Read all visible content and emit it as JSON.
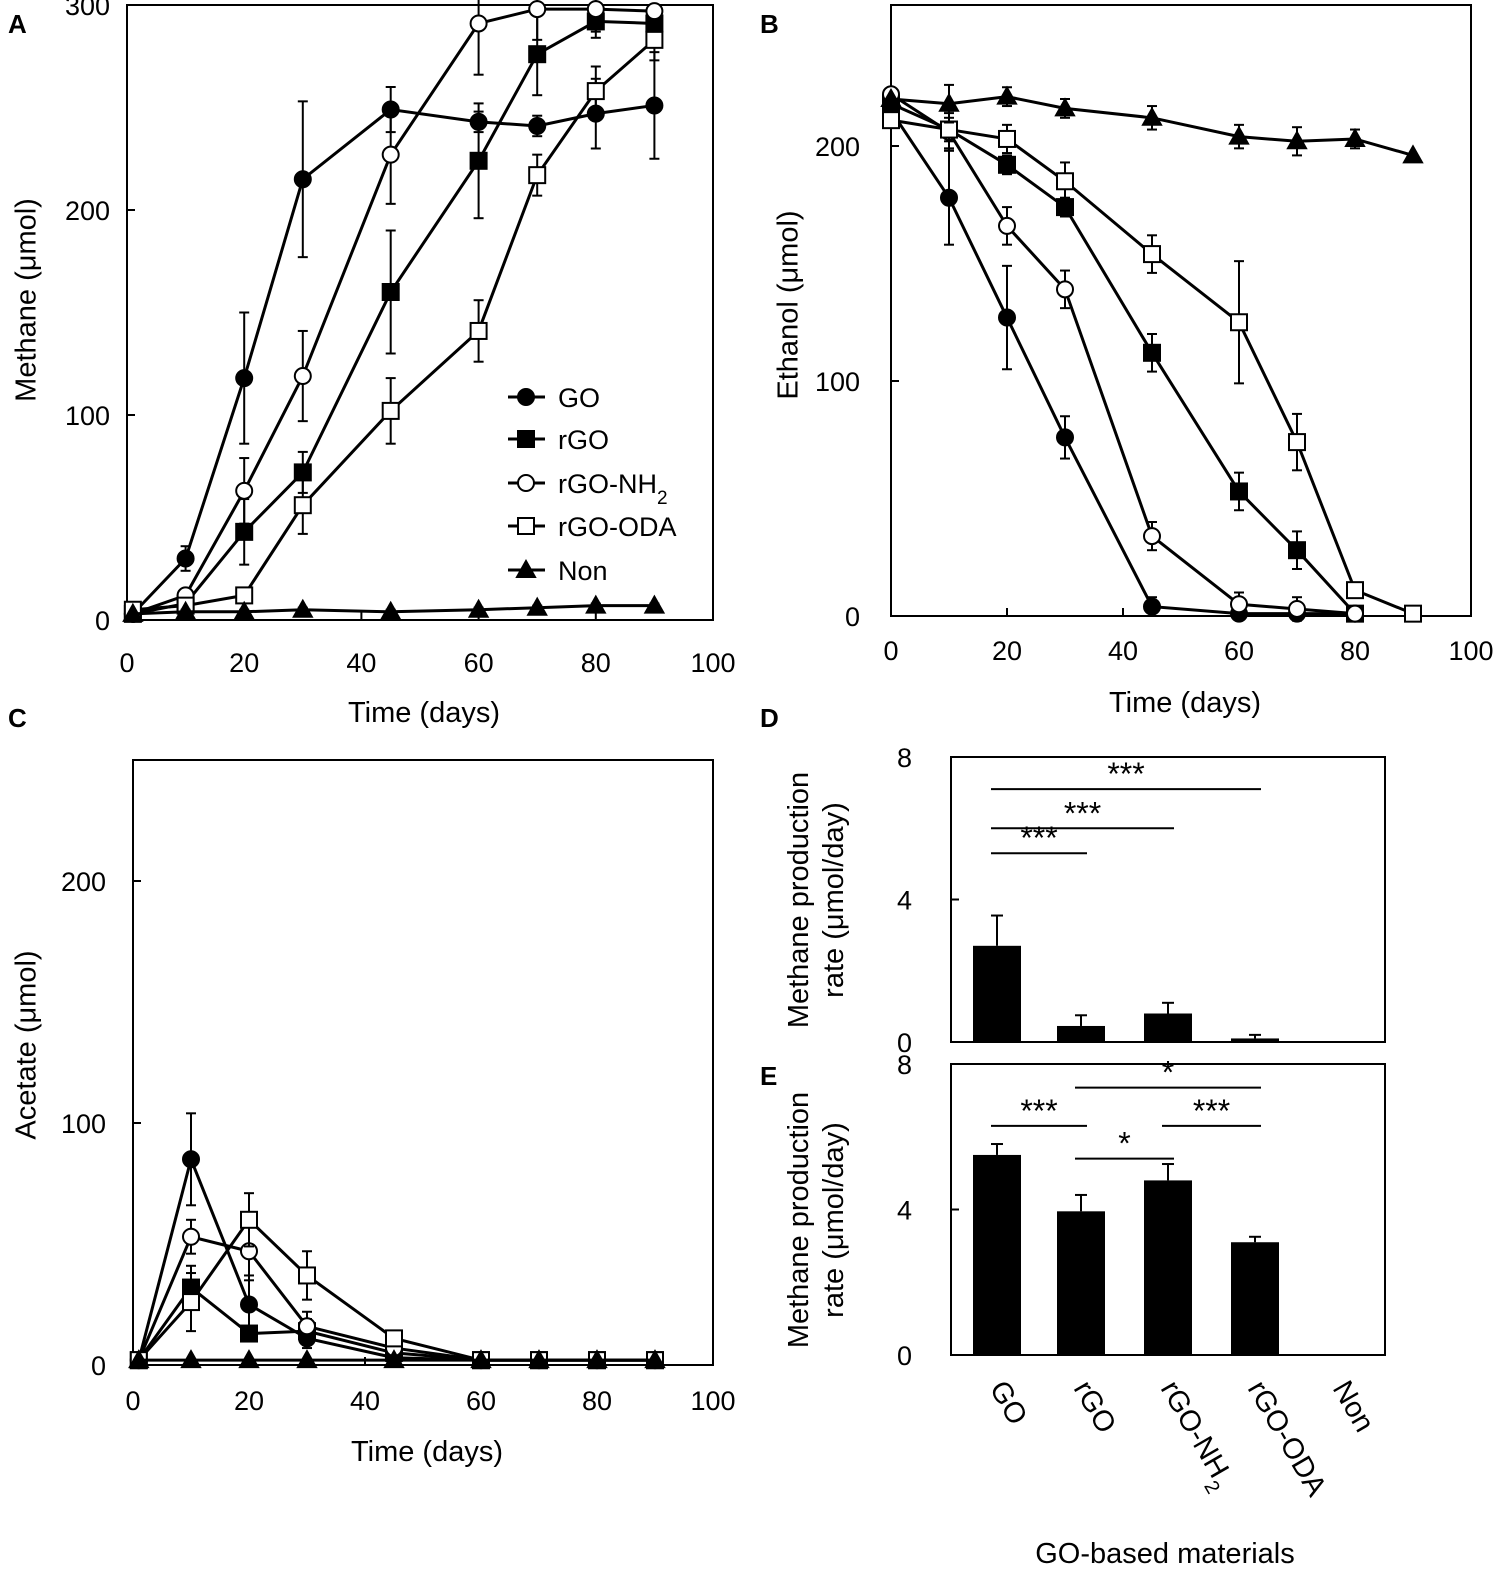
{
  "figure": {
    "series_style": {
      "GO": {
        "marker": "circle",
        "fill": "#000000"
      },
      "rGO": {
        "marker": "square",
        "fill": "#000000"
      },
      "rGO-NH2": {
        "marker": "circle",
        "fill": "#ffffff"
      },
      "rGO-ODA": {
        "marker": "square",
        "fill": "#ffffff"
      },
      "Non": {
        "marker": "triangle",
        "fill": "#000000"
      }
    },
    "legend": {
      "entries": [
        "GO",
        "rGO",
        "rGO-NH",
        "rGO-ODA",
        "Non"
      ],
      "nh2_subscript": "2"
    }
  },
  "chart_data": [
    {
      "id": "A",
      "panel_label": "A",
      "type": "line",
      "xlabel": "Time (days)",
      "ylabel": "Methane (μmol)",
      "xlim": [
        0,
        100
      ],
      "ylim": [
        0,
        300
      ],
      "xticks": [
        "0",
        "20",
        "40",
        "60",
        "80",
        "100"
      ],
      "yticks": [
        "0",
        "100",
        "200",
        "300"
      ],
      "series": [
        {
          "name": "GO",
          "x": [
            1,
            10,
            20,
            30,
            45,
            60,
            70,
            80,
            90
          ],
          "y": [
            3,
            30,
            118,
            215,
            249,
            243,
            241,
            247,
            251
          ],
          "err": [
            0,
            6,
            32,
            38,
            11,
            5,
            5,
            17,
            26
          ]
        },
        {
          "name": "rGO",
          "x": [
            1,
            10,
            20,
            30,
            45,
            60,
            70,
            80,
            90
          ],
          "y": [
            3,
            8,
            43,
            72,
            160,
            224,
            276,
            292,
            291
          ],
          "err": [
            0,
            3,
            16,
            10,
            30,
            28,
            20,
            8,
            6
          ]
        },
        {
          "name": "rGO-NH2",
          "x": [
            1,
            10,
            20,
            30,
            45,
            60,
            70,
            80,
            90
          ],
          "y": [
            3,
            12,
            63,
            119,
            227,
            291,
            298,
            298,
            297
          ],
          "err": [
            0,
            3,
            16,
            22,
            24,
            25,
            15,
            11,
            3
          ]
        },
        {
          "name": "rGO-ODA",
          "x": [
            1,
            10,
            20,
            30,
            45,
            60,
            70,
            80,
            90
          ],
          "y": [
            5,
            7,
            12,
            56,
            102,
            141,
            217,
            258,
            283
          ],
          "err": [
            0,
            2,
            3,
            14,
            16,
            15,
            10,
            12,
            10
          ]
        },
        {
          "name": "Non",
          "x": [
            1,
            10,
            20,
            30,
            45,
            60,
            70,
            80,
            90
          ],
          "y": [
            3,
            4,
            4,
            5,
            4,
            5,
            6,
            7,
            7
          ],
          "err": [
            0,
            1,
            1,
            1,
            1,
            1,
            1,
            1,
            1
          ]
        }
      ]
    },
    {
      "id": "B",
      "panel_label": "B",
      "type": "line",
      "xlabel": "Time (days)",
      "ylabel": "Ethanol (μmol)",
      "xlim": [
        0,
        100
      ],
      "ylim": [
        0,
        260
      ],
      "xticks": [
        "0",
        "20",
        "40",
        "60",
        "80",
        "100"
      ],
      "yticks": [
        "0",
        "100",
        "200"
      ],
      "series": [
        {
          "name": "GO",
          "x": [
            0,
            10,
            20,
            30,
            45,
            60,
            70,
            80
          ],
          "y": [
            215,
            178,
            127,
            76,
            4,
            1,
            1,
            1
          ],
          "err": [
            0,
            20,
            22,
            9,
            4,
            0,
            0,
            0
          ]
        },
        {
          "name": "rGO",
          "x": [
            0,
            10,
            20,
            30,
            45,
            60,
            70,
            80
          ],
          "y": [
            218,
            207,
            192,
            174,
            112,
            53,
            28,
            1
          ],
          "err": [
            0,
            8,
            4,
            4,
            8,
            8,
            8,
            0
          ]
        },
        {
          "name": "rGO-NH2",
          "x": [
            0,
            10,
            20,
            30,
            45,
            60,
            70,
            80
          ],
          "y": [
            222,
            206,
            166,
            139,
            34,
            5,
            3,
            1
          ],
          "err": [
            0,
            8,
            8,
            8,
            6,
            5,
            5,
            0
          ]
        },
        {
          "name": "rGO-ODA",
          "x": [
            0,
            10,
            20,
            30,
            45,
            60,
            70,
            80,
            90
          ],
          "y": [
            211,
            207,
            203,
            185,
            154,
            125,
            74,
            11,
            1
          ],
          "err": [
            0,
            5,
            6,
            8,
            8,
            26,
            12,
            0,
            0
          ]
        },
        {
          "name": "Non",
          "x": [
            0,
            10,
            20,
            30,
            45,
            60,
            70,
            80,
            90
          ],
          "y": [
            220,
            218,
            221,
            216,
            212,
            204,
            202,
            203,
            196
          ],
          "err": [
            0,
            8,
            4,
            4,
            5,
            5,
            6,
            4,
            0
          ]
        }
      ]
    },
    {
      "id": "C",
      "panel_label": "C",
      "type": "line",
      "xlabel": "Time (days)",
      "ylabel": "Acetate (μmol)",
      "xlim": [
        0,
        100
      ],
      "ylim": [
        0,
        250
      ],
      "xticks": [
        "0",
        "20",
        "40",
        "60",
        "80",
        "100"
      ],
      "yticks": [
        "0",
        "100",
        "200"
      ],
      "series": [
        {
          "name": "GO",
          "x": [
            1,
            10,
            20,
            30,
            45,
            60,
            70,
            80,
            90
          ],
          "y": [
            2,
            85,
            25,
            11,
            3,
            2,
            2,
            2,
            2
          ],
          "err": [
            0,
            19,
            12,
            4,
            0,
            0,
            0,
            0,
            0
          ]
        },
        {
          "name": "rGO",
          "x": [
            1,
            10,
            20,
            30,
            45,
            60,
            70,
            80,
            90
          ],
          "y": [
            2,
            32,
            13,
            14,
            5,
            2,
            2,
            2,
            2
          ],
          "err": [
            0,
            9,
            3,
            5,
            0,
            0,
            0,
            0,
            0
          ]
        },
        {
          "name": "rGO-NH2",
          "x": [
            1,
            10,
            20,
            30,
            45,
            60,
            70,
            80,
            90
          ],
          "y": [
            2,
            53,
            47,
            16,
            7,
            2,
            2,
            2,
            2
          ],
          "err": [
            0,
            7,
            12,
            6,
            0,
            0,
            0,
            0,
            0
          ]
        },
        {
          "name": "rGO-ODA",
          "x": [
            1,
            10,
            20,
            30,
            45,
            60,
            70,
            80,
            90
          ],
          "y": [
            2,
            26,
            60,
            37,
            11,
            2,
            2,
            2,
            2
          ],
          "err": [
            0,
            12,
            11,
            10,
            3,
            0,
            0,
            0,
            0
          ]
        },
        {
          "name": "Non",
          "x": [
            1,
            10,
            20,
            30,
            45,
            60,
            70,
            80,
            90
          ],
          "y": [
            2,
            2,
            2,
            2,
            2,
            2,
            2,
            2,
            2
          ],
          "err": [
            0,
            0,
            0,
            0,
            0,
            0,
            0,
            0,
            0
          ]
        }
      ]
    },
    {
      "id": "D",
      "panel_label": "D",
      "type": "bar",
      "ylabel_lines": [
        "Methane production",
        "rate (μmol/day)"
      ],
      "ylim": [
        0,
        8
      ],
      "yticks": [
        "0",
        "4",
        "8"
      ],
      "categories": [
        "GO",
        "rGO",
        "rGO-NH2",
        "rGO-ODA",
        "Non"
      ],
      "values": [
        2.7,
        0.45,
        0.8,
        0.1,
        0.02
      ],
      "errors": [
        0.85,
        0.3,
        0.3,
        0.1,
        0
      ],
      "significance": [
        {
          "from": 0,
          "to": 1,
          "y": 5.3,
          "label": "***"
        },
        {
          "from": 0,
          "to": 2,
          "y": 6.0,
          "label": "***"
        },
        {
          "from": 0,
          "to": 3,
          "y": 7.1,
          "label": "***"
        }
      ]
    },
    {
      "id": "E",
      "panel_label": "E",
      "type": "bar",
      "ylabel_lines": [
        "Methane production",
        "rate (μmol/day)"
      ],
      "ylim": [
        0,
        8
      ],
      "yticks": [
        "0",
        "4",
        "8"
      ],
      "categories": [
        "GO",
        "rGO",
        "rGO-NH",
        "rGO-ODA",
        "Non"
      ],
      "xlabel": "GO-based materials",
      "values": [
        5.5,
        3.95,
        4.8,
        3.1,
        0.02
      ],
      "errors": [
        0.3,
        0.45,
        0.45,
        0.15,
        0
      ],
      "significance": [
        {
          "from": 0,
          "to": 1,
          "y": 6.3,
          "label": "***"
        },
        {
          "from": 1,
          "to": 2,
          "y": 5.4,
          "label": "*"
        },
        {
          "from": 1,
          "to": 3,
          "y": 7.35,
          "label": "*"
        },
        {
          "from": 2,
          "to": 3,
          "y": 6.3,
          "label": "***"
        }
      ]
    }
  ]
}
